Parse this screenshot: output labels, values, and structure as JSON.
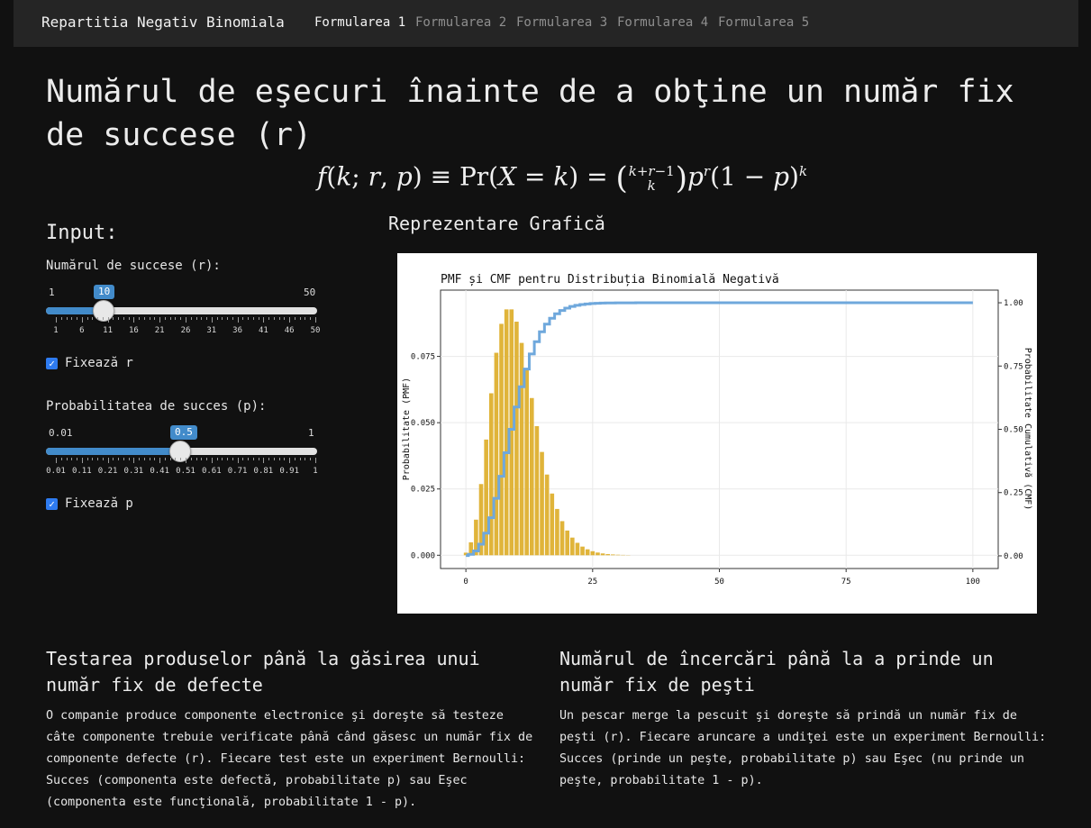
{
  "navbar": {
    "brand": "Repartitia Negativ Binomiala",
    "tabs": [
      {
        "label": "Formularea 1",
        "active": true
      },
      {
        "label": "Formularea 2",
        "active": false
      },
      {
        "label": "Formularea 3",
        "active": false
      },
      {
        "label": "Formularea 4",
        "active": false
      },
      {
        "label": "Formularea 5",
        "active": false
      }
    ]
  },
  "page": {
    "title": "Numărul de eşecuri înainte de a obţine un număr fix de succese (r)",
    "formula": "f(k; r, p) ≡ Pr(X = k) = (k+r−1 choose k) p^r (1 − p)^k"
  },
  "input": {
    "title": "Input:",
    "slider_r": {
      "label": "Numărul de succese (r):",
      "min": 1,
      "max": 50,
      "value": 10,
      "tick_labels": [
        "1",
        "6",
        "11",
        "16",
        "21",
        "26",
        "31",
        "36",
        "41",
        "46",
        "50"
      ]
    },
    "fix_r": {
      "label": "Fixează r",
      "checked": true
    },
    "slider_p": {
      "label": "Probabilitatea de succes (p):",
      "min": 0.01,
      "max": 1,
      "value": 0.5,
      "tick_labels": [
        "0.01",
        "0.11",
        "0.21",
        "0.31",
        "0.41",
        "0.51",
        "0.61",
        "0.71",
        "0.81",
        "0.91",
        "1"
      ]
    },
    "fix_p": {
      "label": "Fixează p",
      "checked": true
    }
  },
  "graph": {
    "title": "Reprezentare Grafică"
  },
  "chart_data": {
    "type": "bar",
    "title": "PMF și CMF pentru Distribuția Binomială Negativă",
    "xlabel": "",
    "ylabel": "Probabilitate (PMF)",
    "y2label": "Probabilitate Cumulativă (CMF)",
    "xlim": [
      -5,
      105
    ],
    "ylim": [
      -0.005,
      0.1
    ],
    "y2lim": [
      -0.05,
      1.05
    ],
    "x_ticks": [
      0,
      25,
      50,
      75,
      100
    ],
    "y_ticks": [
      "0.000",
      "0.025",
      "0.050",
      "0.075"
    ],
    "y2_ticks": [
      "0.00",
      "0.25",
      "0.50",
      "0.75",
      "1.00"
    ],
    "grid": true,
    "colors": {
      "pmf": "#e0b43a",
      "cmf": "#6fa8dc"
    },
    "r": 10,
    "p": 0.5,
    "k_max": 100
  },
  "cards": [
    {
      "title": "Testarea produselor până la găsirea unui număr fix de defecte",
      "text": "O companie produce componente electronice şi doreşte să testeze câte componente trebuie verificate până când găsesc un număr fix de componente defecte (r). Fiecare test este un experiment Bernoulli: Succes (componenta este defectă, probabilitate p) sau Eşec (componenta este funcţională, probabilitate 1 - p)."
    },
    {
      "title": "Numărul de încercări până la a prinde un număr fix de peşti",
      "text": "Un pescar merge la pescuit şi doreşte să prindă un număr fix de peşti (r). Fiecare aruncare a undiţei este un experiment Bernoulli: Succes (prinde un peşte, probabilitate p) sau Eşec (nu prinde un peşte, probabilitate 1 - p)."
    }
  ]
}
